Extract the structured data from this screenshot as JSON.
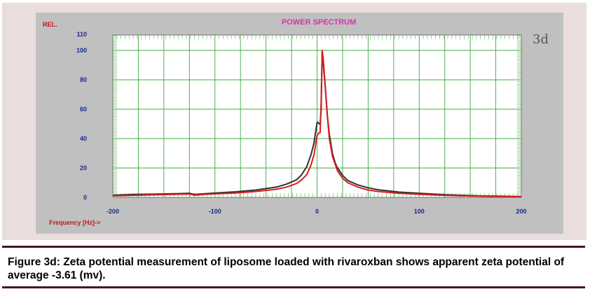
{
  "chart_data": {
    "type": "line",
    "title": "POWER SPECTRUM",
    "ylabel": "REL.",
    "xlabel": "Frequency [Hz]->",
    "panel_label": "3d",
    "xlim": [
      -200,
      200
    ],
    "ylim": [
      0,
      110
    ],
    "x_ticks": [
      -200,
      -100,
      0,
      100,
      200
    ],
    "y_ticks": [
      0,
      20,
      40,
      60,
      80,
      100,
      110
    ],
    "grid": true,
    "series": [
      {
        "color": "#303030",
        "x": [
          -200,
          -180,
          -160,
          -140,
          -125,
          -120,
          -110,
          -100,
          -80,
          -60,
          -40,
          -30,
          -20,
          -15,
          -10,
          -6,
          -3,
          0,
          1,
          2,
          3,
          4,
          5,
          6,
          8,
          10,
          12,
          15,
          18,
          20,
          25,
          30,
          40,
          50,
          60,
          80,
          100,
          120,
          140,
          160,
          180,
          200
        ],
        "y": [
          1.5,
          2,
          2.2,
          2.5,
          2.8,
          2,
          2.5,
          3,
          3.8,
          5,
          7,
          9,
          12,
          15.5,
          21,
          29,
          37,
          51,
          51,
          50,
          50,
          60,
          99,
          92,
          75,
          56,
          43,
          30,
          23,
          20,
          15,
          11.5,
          8.5,
          6.5,
          5.2,
          3.6,
          2.8,
          2,
          1.5,
          1,
          0.8,
          0.5
        ]
      },
      {
        "color": "#d81e1e",
        "x": [
          -200,
          -180,
          -160,
          -140,
          -125,
          -120,
          -110,
          -100,
          -80,
          -60,
          -40,
          -30,
          -20,
          -15,
          -10,
          -6,
          -3,
          0,
          1,
          2,
          3,
          4,
          5,
          6,
          8,
          10,
          12,
          15,
          18,
          20,
          25,
          30,
          40,
          50,
          60,
          80,
          100,
          120,
          140,
          160,
          180,
          200
        ],
        "y": [
          1,
          1.4,
          1.7,
          2,
          2.3,
          1.5,
          2,
          2.4,
          3,
          4,
          5.5,
          7,
          9.5,
          12,
          15.5,
          22,
          29,
          42,
          43,
          44,
          44,
          65,
          100,
          95,
          76,
          56,
          40,
          28,
          22,
          18,
          13,
          10,
          7,
          5,
          4,
          2.8,
          2.1,
          1.5,
          1.1,
          0.8,
          0.6,
          0.4
        ]
      }
    ]
  },
  "caption": "Figure 3d: Zeta potential measurement of liposome loaded with rivaroxban shows apparent zeta potential of average -3.61 (mv)."
}
